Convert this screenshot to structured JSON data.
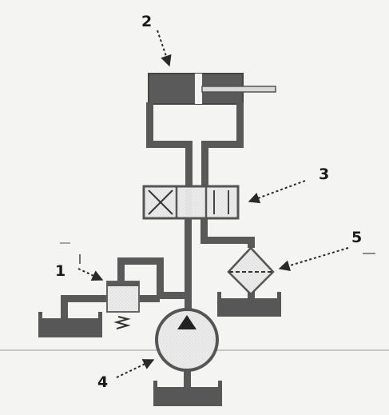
{
  "labels": {
    "cylinder": "2",
    "valve": "3",
    "relief_valve": "1",
    "filter": "5",
    "pump": "4"
  },
  "colors": {
    "pipe": "#595959",
    "tank": "#555555",
    "component_fill": "#e8e8e8",
    "arrow": "#2a2a2a",
    "text": "#1a1a1a"
  }
}
